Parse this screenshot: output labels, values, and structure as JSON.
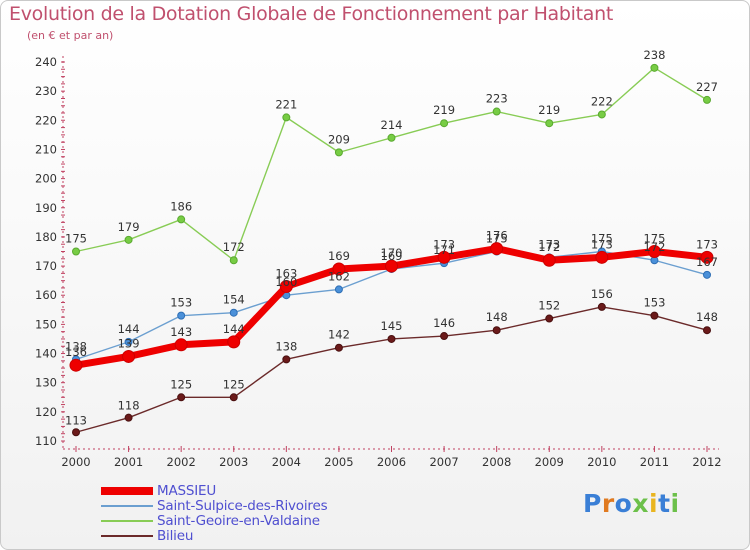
{
  "title": "Evolution de la Dotation Globale de Fonctionnement par Habitant",
  "subtitle": "(en € et par an)",
  "logo": {
    "text": "Proxiti",
    "letters": [
      "P",
      "r",
      "o",
      "x",
      "i",
      "t",
      "i"
    ],
    "colors": [
      "#3a7fd6",
      "#e07a20",
      "#3a7fd6",
      "#6cc04a",
      "#e9b520",
      "#3a7fd6",
      "#6cc04a"
    ]
  },
  "chart_data": {
    "type": "line",
    "title": "Evolution de la Dotation Globale de Fonctionnement par Habitant",
    "subtitle": "(en € et par an)",
    "x": [
      "2000",
      "2001",
      "2002",
      "2003",
      "2004",
      "2005",
      "2006",
      "2007",
      "2008",
      "2009",
      "2010",
      "2011",
      "2012"
    ],
    "ylim": [
      110,
      240
    ],
    "yticks": [
      "110",
      "120",
      "130",
      "140",
      "150",
      "160",
      "170",
      "180",
      "190",
      "200",
      "210",
      "220",
      "230",
      "240"
    ],
    "grid": false,
    "legend_position": "bottom-left",
    "series": [
      {
        "name": "MASSIEU",
        "color": "#ee0000",
        "values": [
          136,
          139,
          143,
          144,
          163,
          169,
          170,
          173,
          176,
          172,
          173,
          175,
          173
        ],
        "labels": [
          "136",
          "139",
          "143",
          "144",
          "163",
          "169",
          "170",
          "173",
          "176",
          "172",
          "173",
          "175",
          "173"
        ]
      },
      {
        "name": "Saint-Sulpice-des-Rivoires",
        "color": "#6b9fd0",
        "values": [
          138,
          144,
          153,
          154,
          160,
          162,
          169,
          171,
          175,
          173,
          175,
          172,
          167
        ],
        "labels": [
          "138",
          "144",
          "153",
          "154",
          "160",
          "162",
          "169",
          "171",
          "175",
          "173",
          "175",
          "172",
          "167"
        ]
      },
      {
        "name": "Saint-Geoire-en-Valdaine",
        "color": "#88cc55",
        "values": [
          175,
          179,
          186,
          172,
          221,
          209,
          214,
          219,
          223,
          219,
          222,
          238,
          227
        ],
        "labels": [
          "175",
          "179",
          "186",
          "172",
          "221",
          "209",
          "214",
          "219",
          "223",
          "219",
          "222",
          "238",
          "227"
        ]
      },
      {
        "name": "Bilieu",
        "color": "#6b2a2a",
        "values": [
          113,
          118,
          125,
          125,
          138,
          142,
          145,
          146,
          148,
          152,
          156,
          153,
          148
        ],
        "labels": [
          "113",
          "118",
          "125",
          "125",
          "138",
          "142",
          "145",
          "146",
          "148",
          "152",
          "156",
          "153",
          "148"
        ]
      }
    ]
  }
}
